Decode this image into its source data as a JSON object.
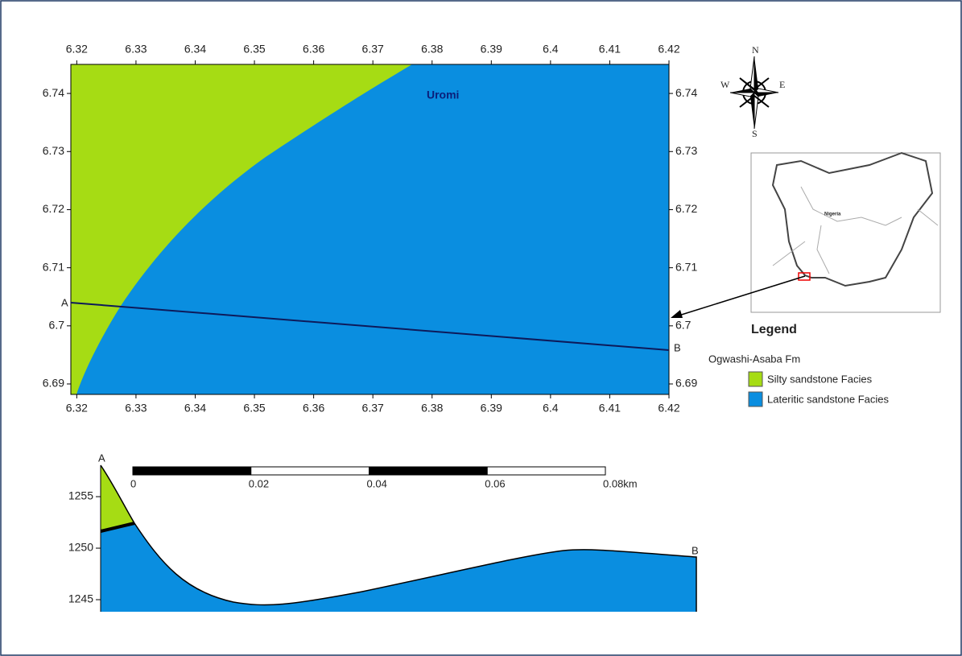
{
  "map": {
    "place": "Uromi",
    "xticks": [
      6.32,
      6.33,
      6.34,
      6.35,
      6.36,
      6.37,
      6.38,
      6.39,
      6.4,
      6.41,
      6.42
    ],
    "yticks": [
      6.74,
      6.73,
      6.72,
      6.71,
      6.7,
      6.69
    ],
    "xlim": [
      6.319,
      6.42
    ],
    "ylim": [
      6.6882,
      6.745
    ],
    "point_a": "A",
    "point_b": "B"
  },
  "compass": {
    "n": "N",
    "s": "S",
    "e": "E",
    "w": "W"
  },
  "inset": {
    "country": "Nigeria"
  },
  "legend": {
    "title": "Legend",
    "formation": "Ogwashi-Asaba Fm",
    "items": [
      {
        "label": "Silty sandstone Facies",
        "color": "#a6dc14"
      },
      {
        "label": "Lateritic sandstone Facies",
        "color": "#0a8ee0"
      }
    ]
  },
  "section": {
    "point_a": "A",
    "point_b": "B",
    "yticks": [
      1255,
      1250,
      1245
    ],
    "ylim": [
      1243.83,
      1258.05
    ],
    "scale_ticks": [
      0,
      0.02,
      0.04,
      0.06,
      {
        "value": 0.08,
        "label": "0.08km"
      }
    ]
  }
}
